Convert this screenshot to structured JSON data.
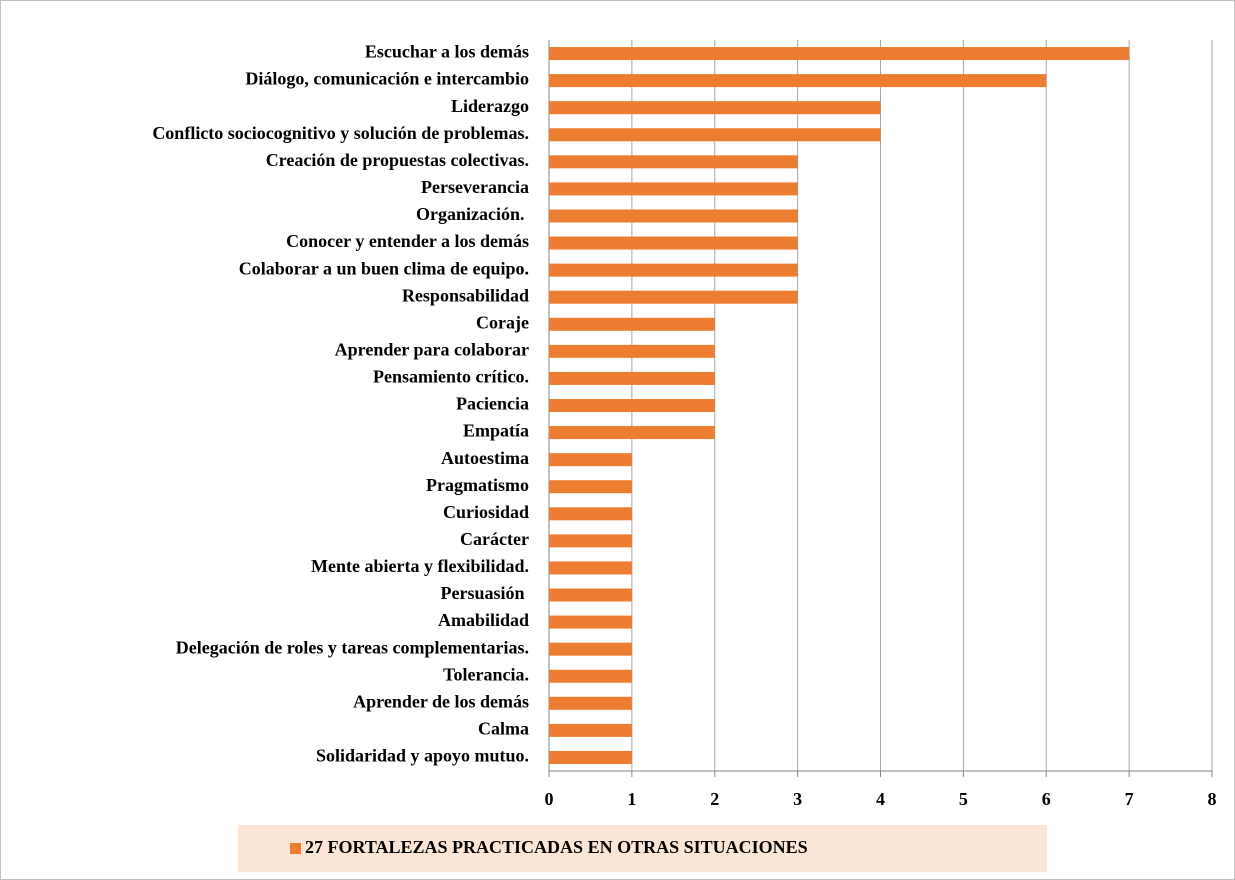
{
  "chart_data": {
    "type": "bar",
    "orientation": "horizontal",
    "categories": [
      "Escuchar a los demás",
      "Diálogo, comunicación e intercambio",
      "Liderazgo",
      "Conflicto sociocognitivo y solución de problemas.",
      "Creación de propuestas colectivas.",
      "Perseverancia",
      "Organización. ",
      "Conocer y entender a los demás",
      "Colaborar a un buen clima de equipo.",
      "Responsabilidad",
      "Coraje",
      "Aprender para colaborar",
      "Pensamiento crítico.",
      "Paciencia",
      "Empatía",
      "Autoestima",
      "Pragmatismo",
      "Curiosidad",
      "Carácter",
      "Mente abierta y flexibilidad.",
      "Persuasión ",
      "Amabilidad",
      "Delegación de roles y tareas complementarias.",
      "Tolerancia.",
      "Aprender de los demás",
      "Calma",
      "Solidaridad y apoyo mutuo."
    ],
    "series": [
      {
        "name": "27 FORTALEZAS PRACTICADAS EN OTRAS SITUACIONES",
        "color": "#ed7d31",
        "values": [
          7,
          6,
          4,
          4,
          3,
          3,
          3,
          3,
          3,
          3,
          2,
          2,
          2,
          2,
          2,
          1,
          1,
          1,
          1,
          1,
          1,
          1,
          1,
          1,
          1,
          1,
          1
        ]
      }
    ],
    "xlim": [
      0,
      8
    ],
    "xticks": [
      0,
      1,
      2,
      3,
      4,
      5,
      6,
      7,
      8
    ],
    "grid": true,
    "legend": "bottom"
  }
}
